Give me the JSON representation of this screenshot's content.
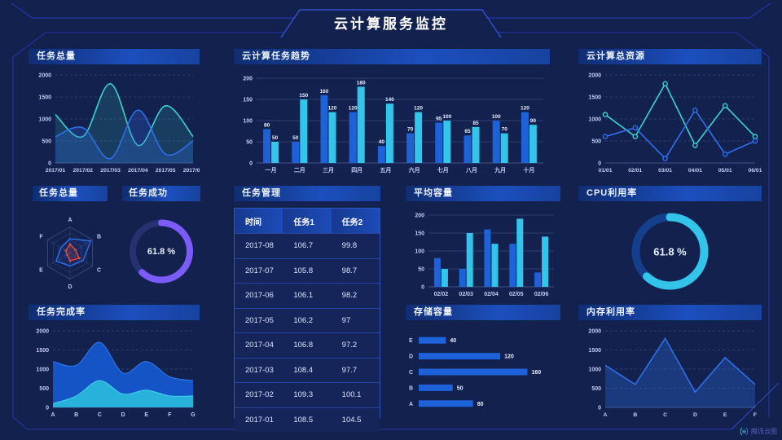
{
  "header": {
    "title": "云计算服务监控"
  },
  "watermark": {
    "label": "腾讯云图",
    "icon": "tencent-cloud-chart-logo-icon"
  },
  "colors": {
    "background": "#13214f",
    "frame_line": "#2e3ecf",
    "frame_bright": "#3d52e0",
    "blue": "#1e62d9",
    "blue_line": "#2f6fe8",
    "cyan": "#32c5e9",
    "teal": "#3bd4cb",
    "purple": "#7b5bfa",
    "red": "#e8493a",
    "axis_text": "#c2cdf0",
    "grid": "#6b7fb8",
    "area_blue": "#1457cd",
    "area_blue_stroke": "#2f7df0",
    "area_cyan": "#28b6dc",
    "area_cyan_stroke": "#44d4f2"
  },
  "table": {
    "title": "任务管理",
    "columns": [
      "时间",
      "任务1",
      "任务2"
    ],
    "rows": [
      [
        "2017-08",
        "106.7",
        "99.8"
      ],
      [
        "2017-07",
        "105.8",
        "98.7"
      ],
      [
        "2017-06",
        "106.1",
        "98.2"
      ],
      [
        "2017-05",
        "106.2",
        "97"
      ],
      [
        "2017-04",
        "106.8",
        "97.2"
      ],
      [
        "2017-03",
        "108.4",
        "97.7"
      ],
      [
        "2017-02",
        "109.3",
        "100.1"
      ],
      [
        "2017-01",
        "108.5",
        "104.5"
      ]
    ]
  },
  "gauges": [
    {
      "key": "task-success",
      "title": "任务成功",
      "value": "61.8 %",
      "percent": 61.8,
      "color": "purple",
      "track": "#28316f"
    },
    {
      "key": "cpu",
      "title": "CPU利用率",
      "value": "61.8 %",
      "percent": 61.8,
      "color": "cyan",
      "track": "#153f8c"
    }
  ],
  "chart_data": [
    {
      "key": "task-total-line",
      "type": "line",
      "title": "任务总量",
      "x": [
        "2017/01",
        "2017/02",
        "2017/03",
        "2017/04",
        "2017/05",
        "2017/06"
      ],
      "ylim": [
        0,
        2000
      ],
      "yticks": [
        0,
        500,
        1000,
        1500,
        2000
      ],
      "grid": "dashed",
      "smooth": true,
      "fill": true,
      "markers": false,
      "series": [
        {
          "name": "series-teal",
          "color": "teal",
          "fill_opacity": 0.15,
          "values": [
            1100,
            600,
            1800,
            400,
            1300,
            600
          ]
        },
        {
          "name": "series-blue",
          "color": "blue_line",
          "fill_opacity": 0.25,
          "values": [
            600,
            800,
            100,
            1200,
            200,
            500
          ]
        }
      ]
    },
    {
      "key": "task-trend-bar",
      "type": "bar",
      "title": "云计算任务趋势",
      "categories": [
        "一月",
        "二月",
        "三月",
        "四月",
        "五月",
        "六月",
        "七月",
        "八月",
        "九月",
        "十月"
      ],
      "ylim": [
        0,
        200
      ],
      "yticks": [
        0,
        50,
        100,
        150,
        200
      ],
      "value_labels": true,
      "series": [
        {
          "name": "series-blue",
          "color": "blue",
          "values": [
            80,
            50,
            160,
            120,
            40,
            70,
            95,
            65,
            100,
            120
          ]
        },
        {
          "name": "series-cyan",
          "color": "cyan",
          "values": [
            50,
            150,
            120,
            180,
            140,
            120,
            100,
            85,
            70,
            90
          ]
        }
      ]
    },
    {
      "key": "cloud-resources-line",
      "type": "line",
      "title": "云计算总资源",
      "x": [
        "01/01",
        "02/01",
        "03/01",
        "04/01",
        "05/01",
        "06/01"
      ],
      "ylim": [
        0,
        2000
      ],
      "yticks": [
        0,
        500,
        1000,
        1500,
        2000
      ],
      "grid": "dashed",
      "smooth": false,
      "fill": false,
      "markers": true,
      "series": [
        {
          "name": "series-teal",
          "color": "teal",
          "values": [
            1100,
            600,
            1800,
            400,
            1300,
            600
          ]
        },
        {
          "name": "series-blue",
          "color": "blue_line",
          "values": [
            600,
            800,
            100,
            1200,
            200,
            500
          ]
        }
      ]
    },
    {
      "key": "task-radar",
      "type": "radar",
      "title": "任务总量",
      "axes": [
        "A",
        "B",
        "C",
        "D",
        "E",
        "F"
      ],
      "max": 100,
      "series": [
        {
          "name": "series-blue",
          "color": "blue_line",
          "fill_opacity": 0.1,
          "values": [
            55,
            92,
            58,
            50,
            62,
            40
          ]
        },
        {
          "name": "series-red",
          "color": "red",
          "fill_opacity": 0.18,
          "dots": true,
          "values": [
            34,
            24,
            40,
            30,
            13,
            18
          ]
        }
      ]
    },
    {
      "key": "avg-capacity-bar",
      "type": "bar",
      "title": "平均容量",
      "categories": [
        "02/02",
        "02/03",
        "02/04",
        "02/05",
        "02/06"
      ],
      "ylim": [
        0,
        200
      ],
      "yticks": [
        0,
        50,
        100,
        150,
        200
      ],
      "value_labels": false,
      "series": [
        {
          "name": "series-blue",
          "color": "blue",
          "values": [
            80,
            50,
            160,
            120,
            40
          ]
        },
        {
          "name": "series-cyan",
          "color": "cyan",
          "values": [
            50,
            150,
            120,
            190,
            140
          ]
        }
      ]
    },
    {
      "key": "task-completion-area",
      "type": "area",
      "title": "任务完成率",
      "x": [
        "A",
        "B",
        "C",
        "D",
        "E",
        "F",
        "G"
      ],
      "ylim": [
        0,
        2000
      ],
      "yticks": [
        0,
        500,
        1000,
        1500,
        2000
      ],
      "grid": "dashed",
      "smooth": true,
      "series": [
        {
          "name": "series-blue",
          "color": "area_blue",
          "stroke": "area_blue_stroke",
          "opacity": 0.95,
          "values": [
            1200,
            1100,
            1700,
            900,
            1200,
            800,
            700
          ]
        },
        {
          "name": "series-cyan",
          "color": "area_cyan",
          "stroke": "area_cyan_stroke",
          "opacity": 0.95,
          "values": [
            100,
            300,
            700,
            350,
            450,
            300,
            300
          ]
        }
      ]
    },
    {
      "key": "storage-hbar",
      "type": "hbar",
      "title": "存储容量",
      "categories": [
        "E",
        "D",
        "C",
        "B",
        "A"
      ],
      "values": [
        40,
        120,
        160,
        50,
        80
      ],
      "xmax": 175
    },
    {
      "key": "memory-line",
      "type": "line",
      "title": "内存利用率",
      "x": [
        "A",
        "B",
        "C",
        "D",
        "E",
        "F"
      ],
      "ylim": [
        0,
        2000
      ],
      "yticks": [
        0,
        500,
        1000,
        1500,
        2000
      ],
      "grid": "dashed",
      "smooth": false,
      "fill": true,
      "markers": false,
      "series": [
        {
          "name": "series-blue",
          "color": "blue_line",
          "fill_opacity": 0.3,
          "values": [
            1100,
            600,
            1800,
            400,
            1300,
            600
          ]
        }
      ]
    }
  ]
}
